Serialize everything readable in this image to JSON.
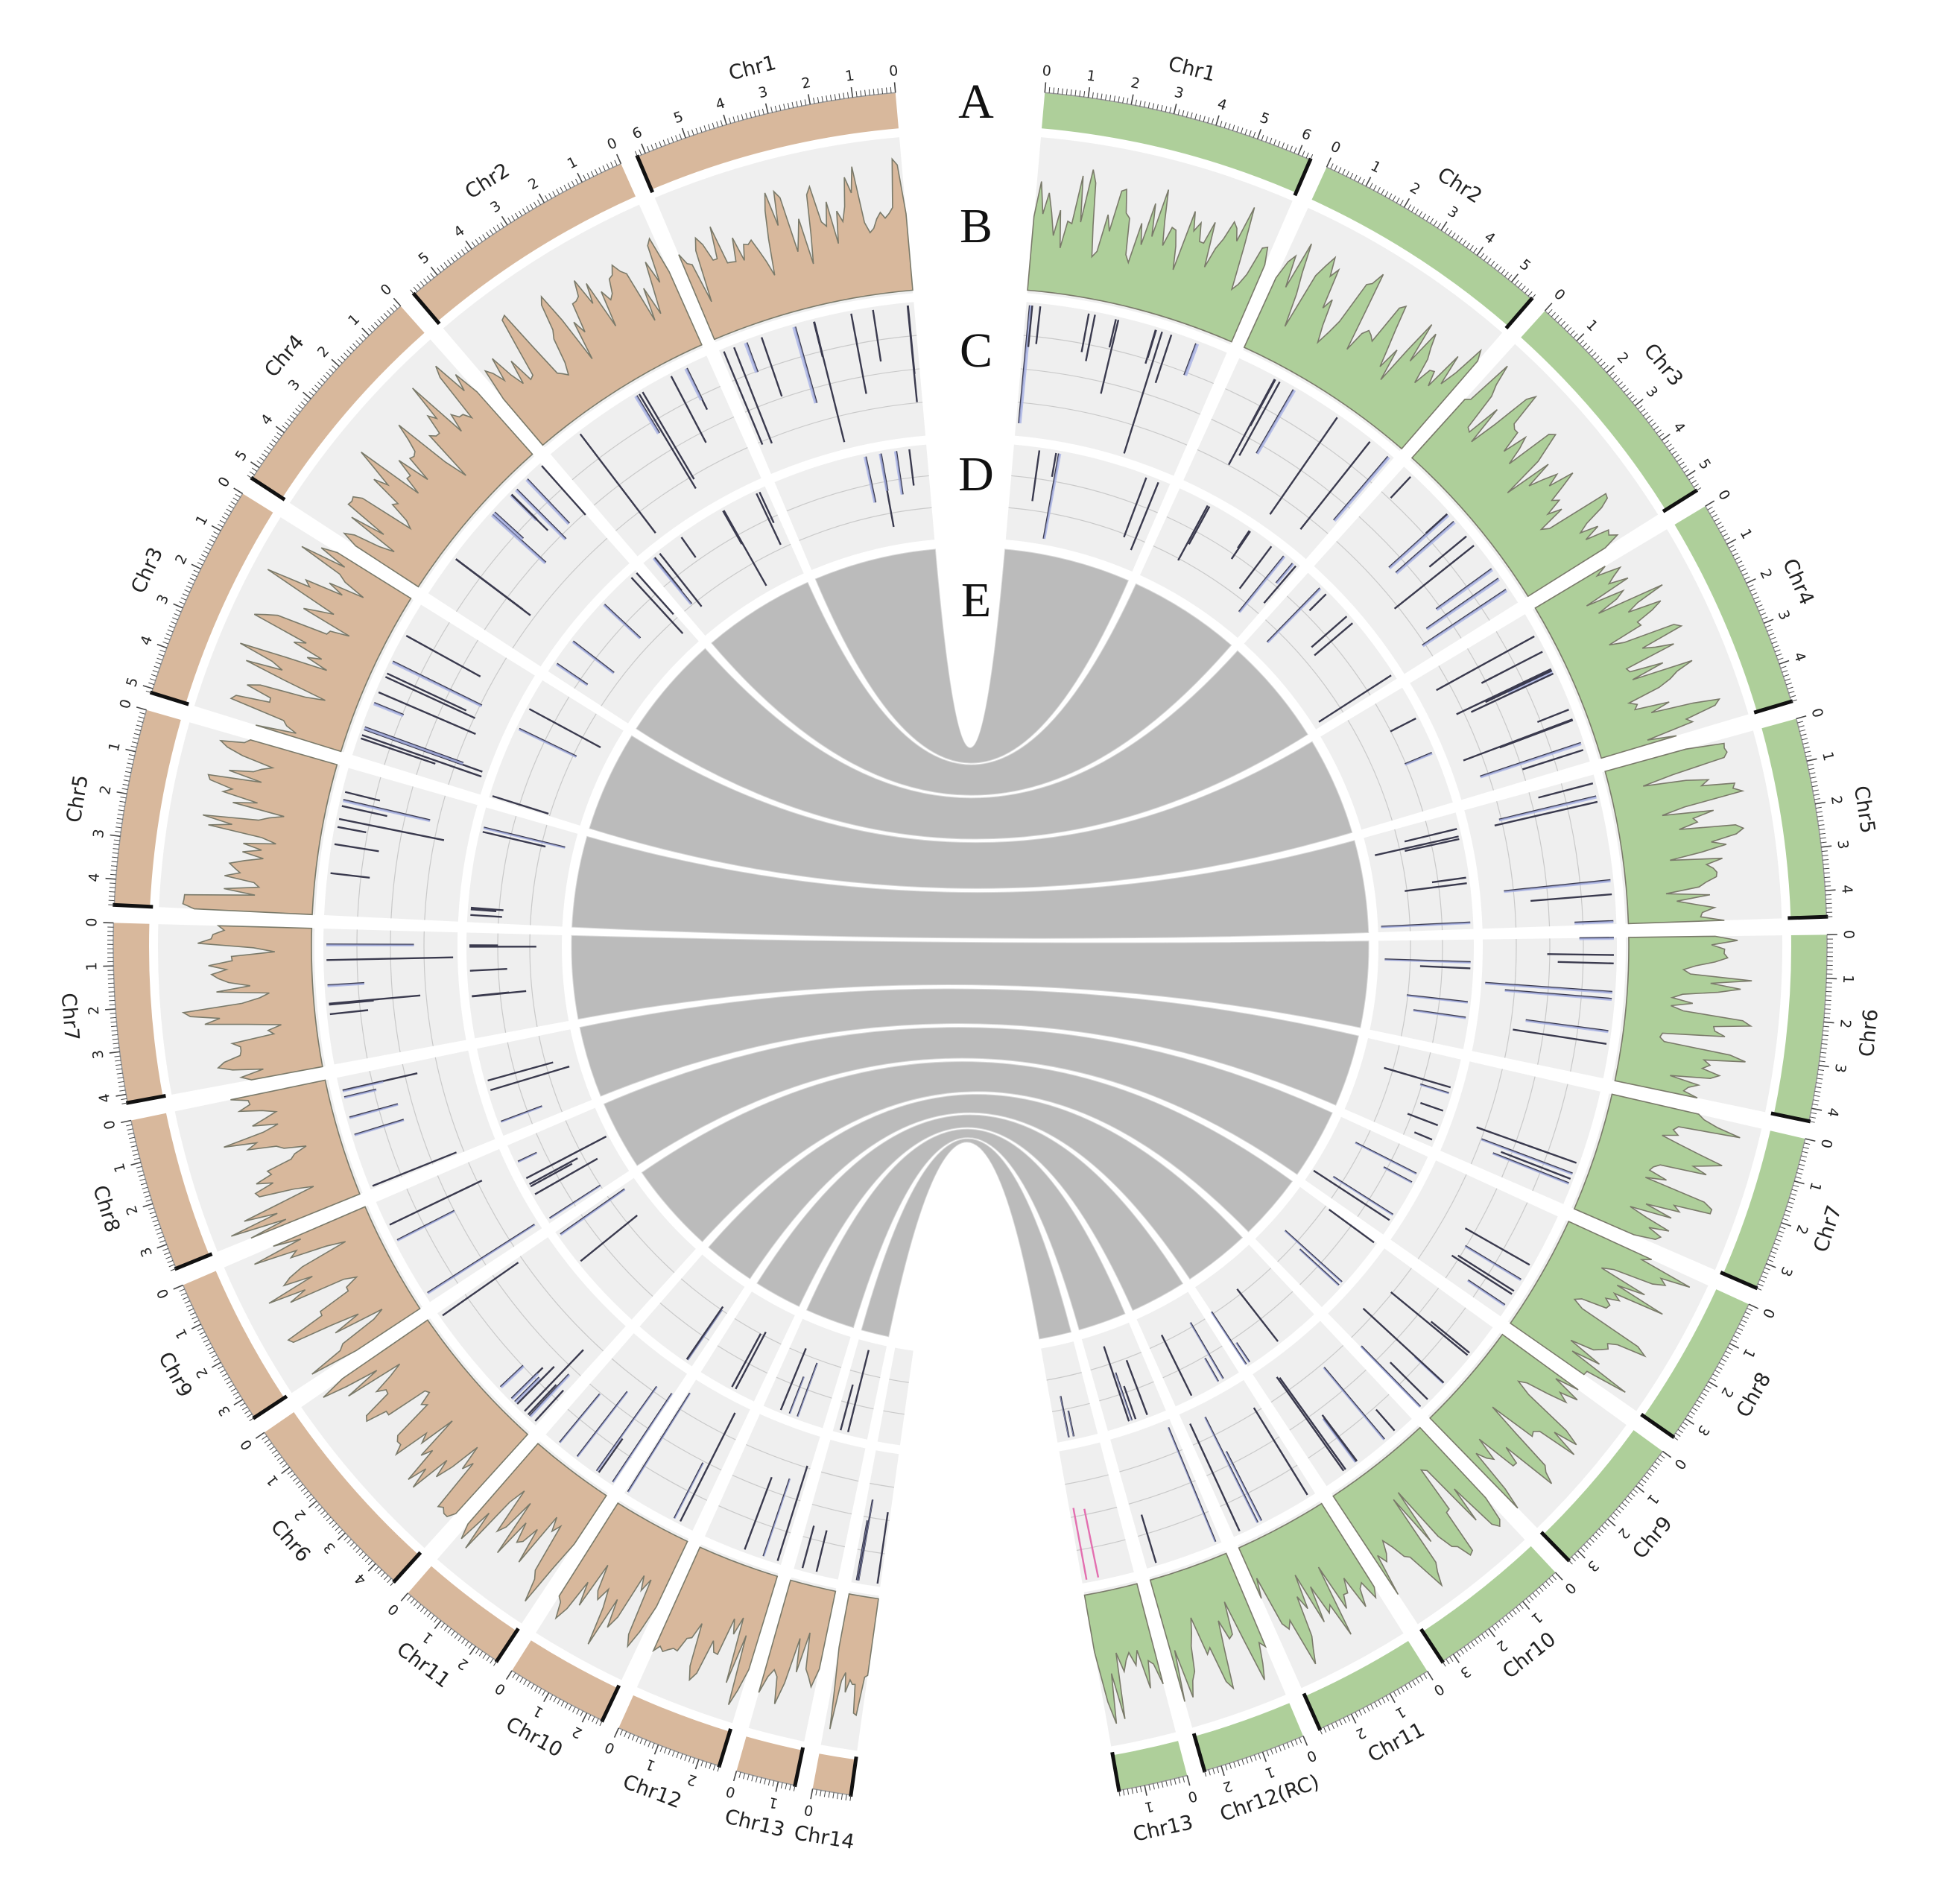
{
  "track_labels": [
    "A",
    "B",
    "C",
    "D",
    "E"
  ],
  "colors": {
    "left_genome": "#d8b89c",
    "right_genome": "#aecf9a",
    "track_bg": "#efefef",
    "histogram_line": "#7a7a6a",
    "variant_bar": "#3a3a4e",
    "variant_fill": "#a9b3e6",
    "highlight": "#e36fb0",
    "link": "#b8b8b8"
  },
  "left_chromosomes": [
    {
      "name": "Chr1",
      "ticks": [
        "0",
        "1",
        "2",
        "3",
        "4",
        "5",
        "6"
      ],
      "size": 6.2
    },
    {
      "name": "Chr2",
      "ticks": [
        "0",
        "1",
        "2",
        "3",
        "4",
        "5"
      ],
      "size": 5.7
    },
    {
      "name": "Chr4",
      "ticks": [
        "0",
        "1",
        "2",
        "3",
        "4",
        "5"
      ],
      "size": 5.3
    },
    {
      "name": "Chr3",
      "ticks": [
        "0",
        "1",
        "2",
        "3",
        "4",
        "5"
      ],
      "size": 5.1
    },
    {
      "name": "Chr5",
      "ticks": [
        "0",
        "1",
        "2",
        "3",
        "4"
      ],
      "size": 4.6
    },
    {
      "name": "Chr7",
      "ticks": [
        "0",
        "1",
        "2",
        "3",
        "4"
      ],
      "size": 4.2
    },
    {
      "name": "Chr8",
      "ticks": [
        "0",
        "1",
        "2",
        "3"
      ],
      "size": 3.6
    },
    {
      "name": "Chr9",
      "ticks": [
        "0",
        "1",
        "2",
        "3"
      ],
      "size": 3.5
    },
    {
      "name": "Chr6",
      "ticks": [
        "0",
        "1",
        "2",
        "3",
        "4"
      ],
      "size": 4.6
    },
    {
      "name": "Chr11",
      "ticks": [
        "0",
        "1",
        "2"
      ],
      "size": 2.6
    },
    {
      "name": "Chr10",
      "ticks": [
        "0",
        "1",
        "2"
      ],
      "size": 2.4
    },
    {
      "name": "Chr12",
      "ticks": [
        "0",
        "1",
        "2"
      ],
      "size": 2.5
    },
    {
      "name": "Chr13",
      "ticks": [
        "0",
        "1"
      ],
      "size": 1.4
    },
    {
      "name": "Chr14",
      "ticks": [
        "0"
      ],
      "size": 0.9
    }
  ],
  "right_chromosomes": [
    {
      "name": "Chr1",
      "ticks": [
        "0",
        "1",
        "2",
        "3",
        "4",
        "5",
        "6"
      ],
      "size": 6.3
    },
    {
      "name": "Chr2",
      "ticks": [
        "0",
        "1",
        "2",
        "3",
        "4",
        "5"
      ],
      "size": 5.6
    },
    {
      "name": "Chr3",
      "ticks": [
        "0",
        "1",
        "2",
        "3",
        "4",
        "5"
      ],
      "size": 5.4
    },
    {
      "name": "Chr4",
      "ticks": [
        "0",
        "1",
        "2",
        "3",
        "4"
      ],
      "size": 4.9
    },
    {
      "name": "Chr5",
      "ticks": [
        "0",
        "1",
        "2",
        "3",
        "4"
      ],
      "size": 4.6
    },
    {
      "name": "Chr6",
      "ticks": [
        "0",
        "1",
        "2",
        "3",
        "4"
      ],
      "size": 4.3
    },
    {
      "name": "Chr7",
      "ticks": [
        "0",
        "1",
        "2",
        "3"
      ],
      "size": 3.6
    },
    {
      "name": "Chr8",
      "ticks": [
        "0",
        "1",
        "2",
        "3"
      ],
      "size": 3.5
    },
    {
      "name": "Chr9",
      "ticks": [
        "0",
        "1",
        "2",
        "3"
      ],
      "size": 3.3
    },
    {
      "name": "Chr10",
      "ticks": [
        "0",
        "1",
        "2",
        "3"
      ],
      "size": 3.3
    },
    {
      "name": "Chr11",
      "ticks": [
        "0",
        "1",
        "2"
      ],
      "size": 2.8
    },
    {
      "name": "Chr12(RC)",
      "ticks": [
        "0",
        "1",
        "2"
      ],
      "size": 2.4
    },
    {
      "name": "Chr13",
      "ticks": [
        "0",
        "1"
      ],
      "size": 1.6
    }
  ]
}
